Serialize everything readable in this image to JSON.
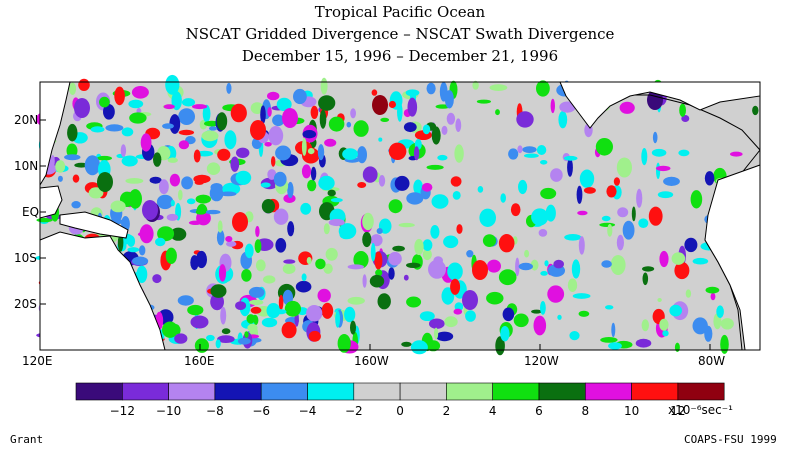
{
  "title": {
    "line1": "Tropical Pacific Ocean",
    "line2": "NSCAT Gridded Divergence – NSCAT Swath Divergence",
    "line3": "December 15, 1996 – December 21, 1996"
  },
  "lat_labels": [
    "20N",
    "10N",
    "EQ",
    "10S",
    "20S"
  ],
  "lon_labels": [
    "120E",
    "160E",
    "160W",
    "120W",
    "80W"
  ],
  "colorbar": {
    "colors": [
      "#3a0a7a",
      "#7a2bd9",
      "#b483f0",
      "#1414b4",
      "#3c8cf0",
      "#00f0f0",
      "#d0d0d0",
      "#d0d0d0",
      "#a0f08c",
      "#10e010",
      "#0a7010",
      "#e010e0",
      "#ff1010",
      "#900010"
    ],
    "tick_labels": [
      "−12",
      "−10",
      "−8",
      "−6",
      "−4",
      "−2",
      "0",
      "2",
      "4",
      "6",
      "8",
      "10",
      "12"
    ],
    "unit": "x10⁻⁶sec⁻¹"
  },
  "footer": {
    "left": "Grant",
    "right": "COAPS-FSU 1999"
  }
}
